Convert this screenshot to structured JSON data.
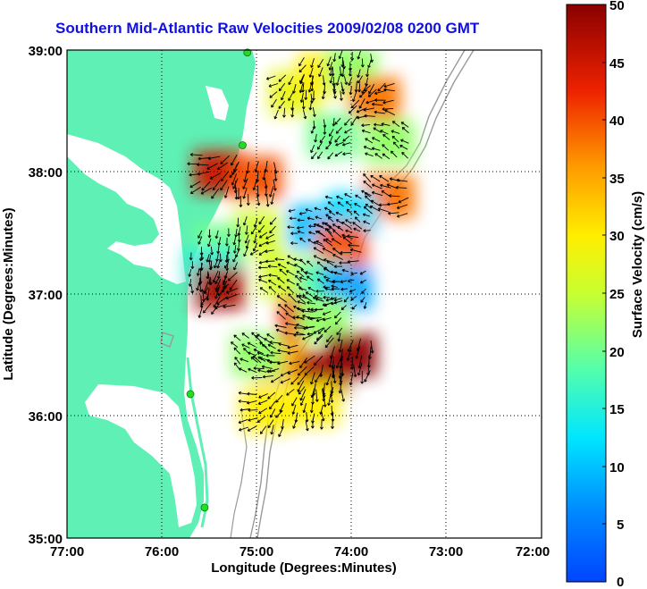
{
  "title": "Southern Mid-Atlantic Raw Velocities 2009/02/08 0200 GMT",
  "x_axis": {
    "label": "Longitude (Degrees:Minutes)",
    "ticks": [
      "77:00",
      "76:00",
      "75:00",
      "74:00",
      "73:00",
      "72:00"
    ]
  },
  "y_axis": {
    "label": "Latitude (Degrees:Minutes)",
    "ticks": [
      "39:00",
      "38:00",
      "37:00",
      "36:00",
      "35:00"
    ]
  },
  "colorbar": {
    "label": "Surface Velocity (cm/s)",
    "ticks": [
      "50",
      "45",
      "40",
      "35",
      "30",
      "25",
      "20",
      "15",
      "10",
      "5",
      "0"
    ],
    "colormap": "jet",
    "range": [
      0,
      50
    ]
  },
  "map_extent": {
    "lon": [
      -77,
      -72
    ],
    "lat": [
      35,
      39
    ]
  },
  "colors": {
    "land": "#5ef0b4",
    "coastline": "#ffffff",
    "bathymetry": "#9a9a9a",
    "title": "#1010e0",
    "stations": "#22dd22"
  },
  "stations": [
    {
      "lon": -75.1,
      "lat": 38.98
    },
    {
      "lon": -75.15,
      "lat": 38.22
    },
    {
      "lon": -75.7,
      "lat": 36.18
    },
    {
      "lon": -75.55,
      "lat": 35.25
    }
  ],
  "velocity_patches": [
    {
      "lon": -75.4,
      "lat": 38.0,
      "speed": 45
    },
    {
      "lon": -75.0,
      "lat": 37.95,
      "speed": 40
    },
    {
      "lon": -74.6,
      "lat": 38.65,
      "speed": 28
    },
    {
      "lon": -74.3,
      "lat": 38.8,
      "speed": 30
    },
    {
      "lon": -74.0,
      "lat": 38.85,
      "speed": 22
    },
    {
      "lon": -73.75,
      "lat": 38.6,
      "speed": 38
    },
    {
      "lon": -73.6,
      "lat": 38.25,
      "speed": 22
    },
    {
      "lon": -74.2,
      "lat": 38.3,
      "speed": 20
    },
    {
      "lon": -73.6,
      "lat": 37.8,
      "speed": 38
    },
    {
      "lon": -74.0,
      "lat": 37.65,
      "speed": 12
    },
    {
      "lon": -74.4,
      "lat": 37.55,
      "speed": 10
    },
    {
      "lon": -74.1,
      "lat": 37.4,
      "speed": 40
    },
    {
      "lon": -75.0,
      "lat": 37.5,
      "speed": 26
    },
    {
      "lon": -75.4,
      "lat": 37.4,
      "speed": 20
    },
    {
      "lon": -75.5,
      "lat": 37.2,
      "speed": 15
    },
    {
      "lon": -75.4,
      "lat": 37.05,
      "speed": 48
    },
    {
      "lon": -74.7,
      "lat": 37.15,
      "speed": 26
    },
    {
      "lon": -74.3,
      "lat": 37.1,
      "speed": 18
    },
    {
      "lon": -74.05,
      "lat": 37.05,
      "speed": 8
    },
    {
      "lon": -74.5,
      "lat": 36.8,
      "speed": 42
    },
    {
      "lon": -74.3,
      "lat": 36.8,
      "speed": 22
    },
    {
      "lon": -74.75,
      "lat": 36.45,
      "speed": 35
    },
    {
      "lon": -74.3,
      "lat": 36.35,
      "speed": 48
    },
    {
      "lon": -74.0,
      "lat": 36.5,
      "speed": 50
    },
    {
      "lon": -74.9,
      "lat": 36.05,
      "speed": 30
    },
    {
      "lon": -75.0,
      "lat": 36.5,
      "speed": 22
    },
    {
      "lon": -74.4,
      "lat": 36.1,
      "speed": 30
    }
  ]
}
